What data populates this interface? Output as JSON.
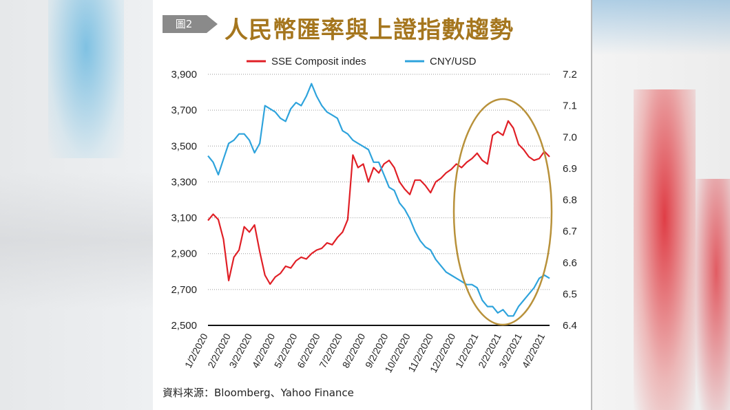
{
  "header": {
    "badge": "圖2",
    "title": "人民幣匯率與上證指數趨勢"
  },
  "source": "資料來源：Bloomberg、Yahoo Finance",
  "colors": {
    "sse": "#e01f26",
    "cny": "#2ea3dc",
    "title": "#a5761e",
    "ellipse": "#b8913a",
    "badge": "#8a8a8a"
  },
  "chart_data": {
    "type": "line",
    "legend_placement": "top-center",
    "grid": true,
    "x": [
      "2020-01-02",
      "2020-01-09",
      "2020-01-16",
      "2020-01-23",
      "2020-01-30",
      "2020-02-06",
      "2020-02-13",
      "2020-02-20",
      "2020-02-27",
      "2020-03-05",
      "2020-03-12",
      "2020-03-19",
      "2020-03-26",
      "2020-04-02",
      "2020-04-09",
      "2020-04-16",
      "2020-04-23",
      "2020-04-30",
      "2020-05-07",
      "2020-05-14",
      "2020-05-21",
      "2020-05-28",
      "2020-06-04",
      "2020-06-11",
      "2020-06-18",
      "2020-06-25",
      "2020-07-02",
      "2020-07-09",
      "2020-07-16",
      "2020-07-23",
      "2020-07-30",
      "2020-08-06",
      "2020-08-13",
      "2020-08-20",
      "2020-08-27",
      "2020-09-03",
      "2020-09-10",
      "2020-09-17",
      "2020-09-24",
      "2020-10-01",
      "2020-10-08",
      "2020-10-15",
      "2020-10-22",
      "2020-10-29",
      "2020-11-05",
      "2020-11-12",
      "2020-11-19",
      "2020-11-26",
      "2020-12-03",
      "2020-12-10",
      "2020-12-17",
      "2020-12-24",
      "2020-12-31",
      "2021-01-07",
      "2021-01-14",
      "2021-01-21",
      "2021-01-28",
      "2021-02-04",
      "2021-02-11",
      "2021-02-18",
      "2021-02-25",
      "2021-03-04",
      "2021-03-11",
      "2021-03-18",
      "2021-03-25",
      "2021-04-01",
      "2021-04-08"
    ],
    "x_tick_labels": [
      "1/2/2020",
      "2/2/2020",
      "3/2/2020",
      "4/2/2020",
      "5/2/2020",
      "6/2/2020",
      "7/2/2020",
      "8/2/2020",
      "9/2/2020",
      "10/2/2020",
      "11/2/2020",
      "12/2/2020",
      "1/2/2021",
      "2/2/2021",
      "3/2/2021",
      "4/2/2021"
    ],
    "y_left": {
      "ticks": [
        "2,500",
        "2,700",
        "2,900",
        "3,100",
        "3,300",
        "3,500",
        "3,700",
        "3,900"
      ],
      "range": [
        2500,
        3900
      ]
    },
    "y_right": {
      "ticks": [
        "6.4",
        "6.5",
        "6.6",
        "6.7",
        "6.8",
        "6.9",
        "7.0",
        "7.1",
        "7.2"
      ],
      "range": [
        6.4,
        7.2
      ]
    },
    "series": [
      {
        "name": "SSE Composit indes",
        "axis": "left",
        "values": [
          3085,
          3120,
          3090,
          2980,
          2750,
          2880,
          2920,
          3050,
          3020,
          3060,
          2910,
          2780,
          2730,
          2770,
          2790,
          2830,
          2820,
          2860,
          2880,
          2870,
          2900,
          2920,
          2930,
          2960,
          2950,
          2990,
          3020,
          3090,
          3450,
          3380,
          3400,
          3300,
          3380,
          3350,
          3400,
          3420,
          3380,
          3300,
          3260,
          3230,
          3310,
          3310,
          3280,
          3240,
          3300,
          3320,
          3350,
          3370,
          3400,
          3380,
          3410,
          3430,
          3460,
          3420,
          3400,
          3560,
          3580,
          3560,
          3640,
          3600,
          3510,
          3480,
          3440,
          3420,
          3430,
          3470,
          3440
        ]
      },
      {
        "name": "CNY/USD",
        "axis": "right",
        "values": [
          6.94,
          6.92,
          6.88,
          6.93,
          6.98,
          6.99,
          7.01,
          7.01,
          6.99,
          6.95,
          6.98,
          7.1,
          7.09,
          7.08,
          7.06,
          7.05,
          7.09,
          7.11,
          7.1,
          7.13,
          7.17,
          7.13,
          7.1,
          7.08,
          7.07,
          7.06,
          7.02,
          7.01,
          6.99,
          6.98,
          6.97,
          6.96,
          6.92,
          6.92,
          6.88,
          6.84,
          6.83,
          6.79,
          6.77,
          6.74,
          6.7,
          6.67,
          6.65,
          6.64,
          6.61,
          6.59,
          6.57,
          6.56,
          6.55,
          6.54,
          6.53,
          6.53,
          6.52,
          6.48,
          6.46,
          6.46,
          6.44,
          6.45,
          6.43,
          6.43,
          6.46,
          6.48,
          6.5,
          6.52,
          6.55,
          6.56,
          6.55
        ]
      }
    ]
  }
}
